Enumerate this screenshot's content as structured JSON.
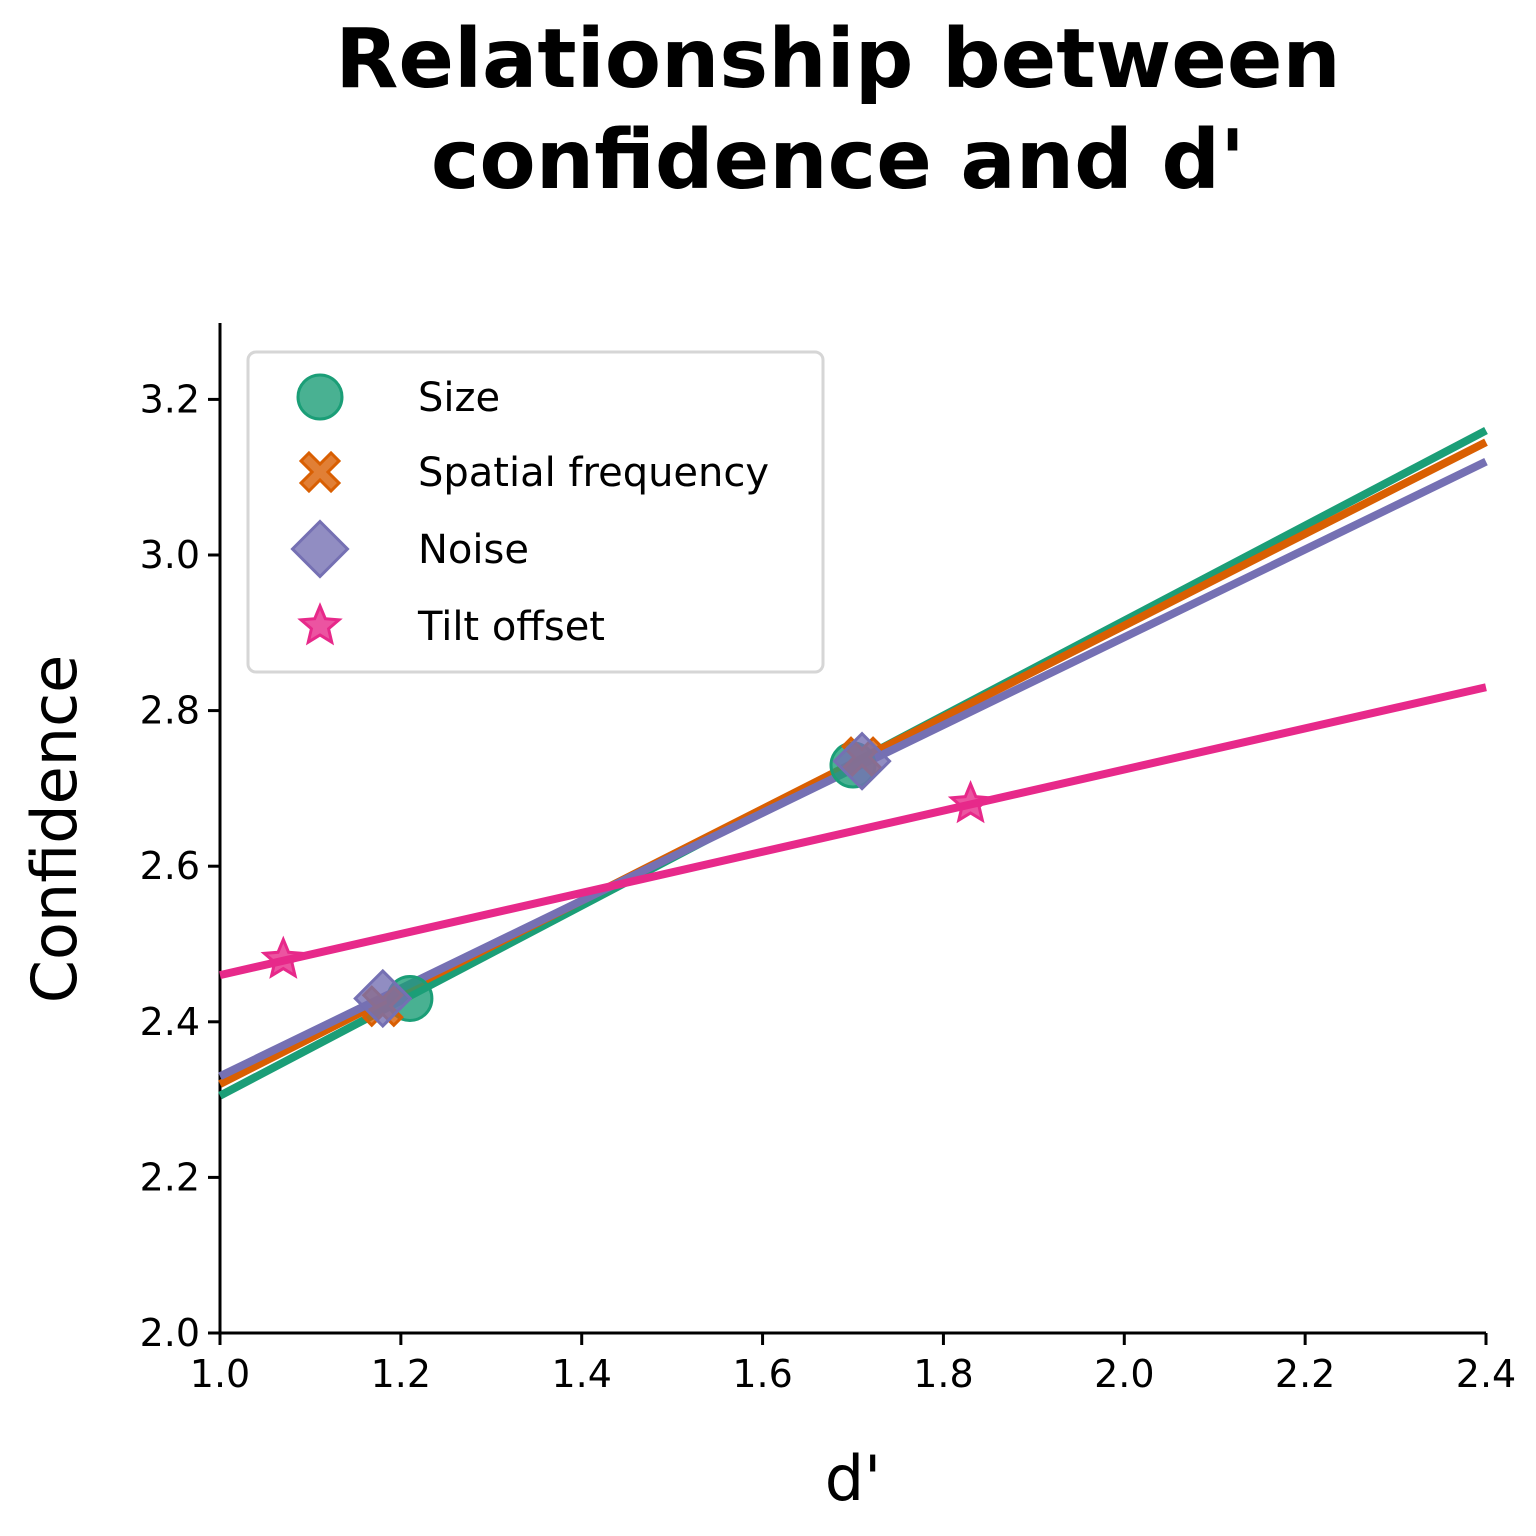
{
  "chart_data": {
    "type": "scatter",
    "title": "Relationship between confidence and d'",
    "title_lines": [
      "Relationship between",
      "confidence and d'"
    ],
    "xlabel": "d'",
    "ylabel": "Confidence",
    "xlim": [
      1.0,
      2.4
    ],
    "ylim": [
      2.0,
      3.3
    ],
    "xticks": [
      1.0,
      1.2,
      1.4,
      1.6,
      1.8,
      2.0,
      2.2,
      2.4
    ],
    "xtick_labels": [
      "1.0",
      "1.2",
      "1.4",
      "1.6",
      "1.8",
      "2.0",
      "2.2",
      "2.4"
    ],
    "yticks": [
      2.0,
      2.2,
      2.4,
      2.6,
      2.8,
      3.0,
      3.2
    ],
    "ytick_labels": [
      "2.0",
      "2.2",
      "2.4",
      "2.6",
      "2.8",
      "3.0",
      "3.2"
    ],
    "grid": false,
    "legend_position": "top-left",
    "series": [
      {
        "name": "Size",
        "marker": "circle",
        "color": "#1b9e77",
        "points": [
          {
            "x": 1.21,
            "y": 2.43
          },
          {
            "x": 1.7,
            "y": 2.73
          }
        ],
        "fit_line": {
          "x": [
            1.0,
            2.4
          ],
          "y": [
            2.305,
            3.16
          ]
        }
      },
      {
        "name": "Spatial frequency",
        "marker": "x",
        "color": "#d95f02",
        "points": [
          {
            "x": 1.18,
            "y": 2.42
          },
          {
            "x": 1.71,
            "y": 2.74
          }
        ],
        "fit_line": {
          "x": [
            1.0,
            2.4
          ],
          "y": [
            2.32,
            3.145
          ]
        }
      },
      {
        "name": "Noise",
        "marker": "diamond",
        "color": "#7570b3",
        "points": [
          {
            "x": 1.18,
            "y": 2.43
          },
          {
            "x": 1.71,
            "y": 2.735
          }
        ],
        "fit_line": {
          "x": [
            1.0,
            2.4
          ],
          "y": [
            2.33,
            3.12
          ]
        }
      },
      {
        "name": "Tilt offset",
        "marker": "star",
        "color": "#e7298a",
        "points": [
          {
            "x": 1.07,
            "y": 2.48
          },
          {
            "x": 1.83,
            "y": 2.68
          }
        ],
        "fit_line": {
          "x": [
            1.0,
            2.4
          ],
          "y": [
            2.46,
            2.83
          ]
        }
      }
    ]
  }
}
